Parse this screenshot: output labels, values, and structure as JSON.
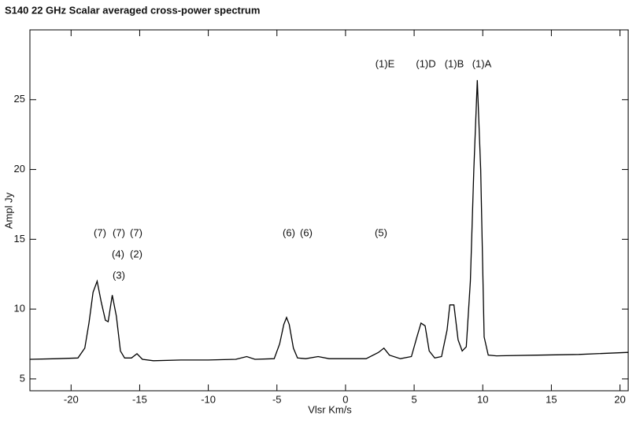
{
  "chart_data": {
    "type": "line",
    "title": "S140 22 GHz Scalar averaged cross-power spectrum",
    "x_label": "Vlsr Km/s",
    "y_label": "Ampl Jy",
    "x": [
      -23,
      -21,
      -19.5,
      -19,
      -18.7,
      -18.4,
      -18.1,
      -17.8,
      -17.5,
      -17.3,
      -17.0,
      -16.7,
      -16.4,
      -16.1,
      -15.6,
      -15.2,
      -14.8,
      -14,
      -12,
      -10,
      -8,
      -7.2,
      -6.6,
      -5.2,
      -4.8,
      -4.5,
      -4.3,
      -4.1,
      -3.8,
      -3.5,
      -2.9,
      -2,
      -1.2,
      0,
      1.5,
      2.4,
      2.8,
      3.2,
      4,
      4.8,
      5.2,
      5.5,
      5.8,
      6.1,
      6.5,
      7,
      7.4,
      7.6,
      7.9,
      8.2,
      8.5,
      8.8,
      9.1,
      9.35,
      9.6,
      9.85,
      10.1,
      10.4,
      11,
      14,
      17,
      20.6
    ],
    "series": [
      {
        "color": "#000000",
        "values": [
          6.4,
          6.45,
          6.5,
          7.2,
          9,
          11.2,
          12,
          10.5,
          9.2,
          9.1,
          11,
          9.5,
          7,
          6.5,
          6.5,
          6.8,
          6.4,
          6.3,
          6.35,
          6.35,
          6.4,
          6.6,
          6.4,
          6.45,
          7.5,
          8.9,
          9.4,
          8.9,
          7.2,
          6.5,
          6.45,
          6.6,
          6.45,
          6.45,
          6.45,
          6.9,
          7.2,
          6.7,
          6.45,
          6.6,
          8,
          9,
          8.8,
          7,
          6.5,
          6.6,
          8.5,
          10.3,
          10.3,
          7.8,
          7.0,
          7.3,
          12,
          20,
          26.4,
          20,
          8,
          6.7,
          6.65,
          6.7,
          6.75,
          6.9
        ]
      }
    ],
    "xlim": [
      -23,
      20.6
    ],
    "ylim": [
      4.15,
      30
    ],
    "xticks": [
      -20,
      -15,
      -10,
      -5,
      0,
      5,
      10,
      15,
      20
    ],
    "yticks": [
      5,
      10,
      15,
      20,
      25
    ],
    "annotations": [
      "(1)E",
      "(1)D",
      "(1)B",
      "(1)A",
      "(7)",
      "(7)",
      "(7)",
      "(4)",
      "(2)",
      "(3)",
      "(6)",
      "(6)",
      "(5)"
    ]
  }
}
